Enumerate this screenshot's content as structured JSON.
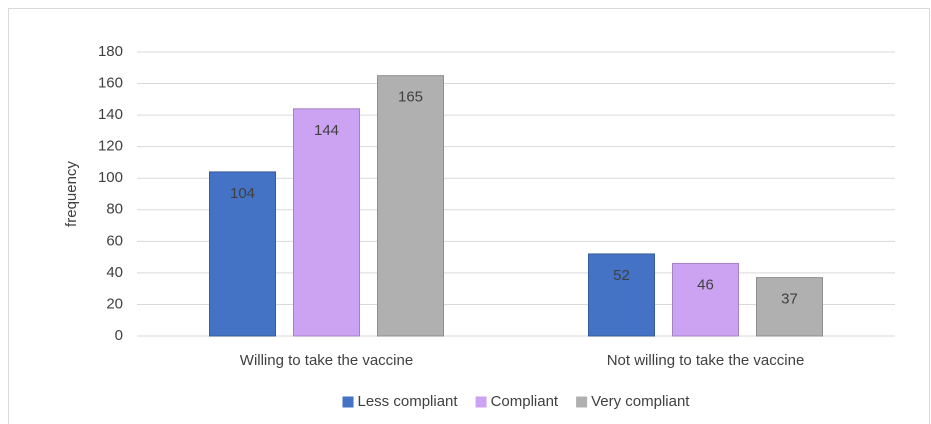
{
  "chart_data": {
    "type": "bar",
    "y_label": "frequency",
    "categories": [
      "Willing to take the vaccine",
      "Not willing to take the vaccine"
    ],
    "series": [
      {
        "name": "Less compliant",
        "color": "#4472c4",
        "values": [
          104,
          52
        ]
      },
      {
        "name": "Compliant",
        "color": "#cca3f2",
        "values": [
          144,
          46
        ]
      },
      {
        "name": "Very compliant",
        "color": "#b0b0b0",
        "values": [
          165,
          37
        ]
      }
    ],
    "ylim": [
      0,
      180
    ],
    "yticks": [
      0,
      20,
      40,
      60,
      80,
      100,
      120,
      140,
      160,
      180
    ],
    "grid": true,
    "legend": "bottom"
  }
}
